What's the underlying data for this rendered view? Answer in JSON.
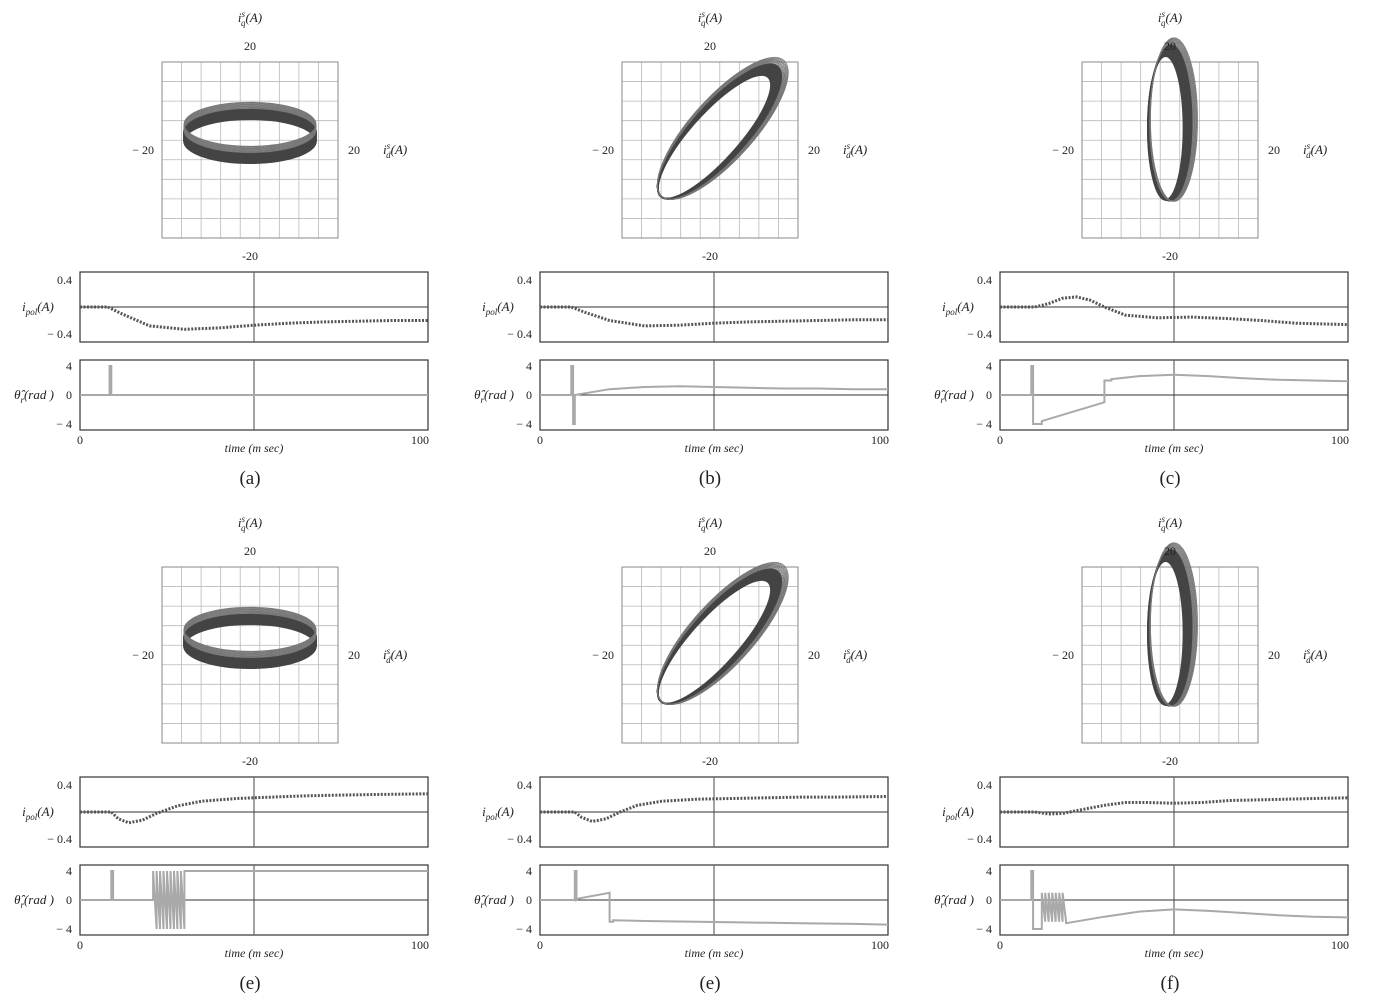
{
  "figure": {
    "captions": [
      "(a)",
      "(b)",
      "(c)",
      "(e)",
      "(e)",
      "(f)"
    ]
  },
  "labels": {
    "phase_y": "i",
    "phase_y_sup": "s",
    "phase_y_sub": "q",
    "phase_x": "i",
    "phase_x_sup": "s",
    "phase_x_sub": "d",
    "unit_A": "(A)",
    "ipol": "i",
    "ipol_sub": "pol",
    "theta": "θ̂",
    "theta_sub": "r",
    "theta_unit": "(rad )",
    "time_label": "time (m sec)"
  },
  "chart_data": [
    {
      "type": "line",
      "caption": "(a)",
      "phase": {
        "xlabel": "i_d^s(A)",
        "ylabel": "i_q^s(A)",
        "xlim": [
          -20,
          20
        ],
        "ylim": [
          -20,
          20
        ],
        "ticks": [
          -20,
          20
        ],
        "orbit": {
          "shape": "horizontal-ellipse",
          "center": [
            0,
            4
          ],
          "semi_axis_major": 15,
          "semi_axis_minor": 5,
          "tilt_deg": 0
        }
      },
      "ipol": {
        "ylabel": "i_pol(A)",
        "xlim": [
          0,
          100
        ],
        "ylim": [
          -0.4,
          0.4
        ],
        "yticks": [
          0.4,
          -0.4
        ],
        "x": [
          0,
          8,
          12,
          20,
          30,
          40,
          50,
          60,
          70,
          80,
          90,
          100
        ],
        "y": [
          0,
          0,
          -0.1,
          -0.28,
          -0.33,
          -0.31,
          -0.27,
          -0.24,
          -0.22,
          -0.21,
          -0.2,
          -0.2
        ]
      },
      "theta": {
        "ylabel": "θ̂_r(rad)",
        "xlabel": "time (m sec)",
        "xlim": [
          0,
          100
        ],
        "ylim": [
          -4,
          4
        ],
        "yticks": [
          4,
          0,
          -4
        ],
        "xticks": [
          0,
          100
        ],
        "x": [
          0,
          8.5,
          8.5,
          9,
          9,
          100
        ],
        "y": [
          0,
          0,
          4,
          4,
          0,
          0
        ]
      }
    },
    {
      "type": "line",
      "caption": "(b)",
      "phase": {
        "xlabel": "i_d^s(A)",
        "ylabel": "i_q^s(A)",
        "xlim": [
          -20,
          20
        ],
        "ylim": [
          -20,
          20
        ],
        "ticks": [
          -20,
          20
        ],
        "orbit": {
          "shape": "tilted-ellipse",
          "center": [
            2,
            3
          ],
          "semi_axis_major": 19,
          "semi_axis_minor": 6,
          "tilt_deg": 48
        }
      },
      "ipol": {
        "ylabel": "i_pol(A)",
        "xlim": [
          0,
          100
        ],
        "ylim": [
          -0.4,
          0.4
        ],
        "yticks": [
          0.4,
          -0.4
        ],
        "x": [
          0,
          9,
          13,
          20,
          30,
          40,
          50,
          60,
          70,
          80,
          90,
          100
        ],
        "y": [
          0,
          0,
          -0.08,
          -0.2,
          -0.28,
          -0.27,
          -0.24,
          -0.22,
          -0.21,
          -0.2,
          -0.19,
          -0.19
        ]
      },
      "theta": {
        "ylabel": "θ̂_r(rad)",
        "xlabel": "time (m sec)",
        "xlim": [
          0,
          100
        ],
        "ylim": [
          -4,
          4
        ],
        "yticks": [
          4,
          0,
          -4
        ],
        "xticks": [
          0,
          100
        ],
        "x": [
          0,
          9,
          9,
          9.5,
          9.5,
          10,
          10,
          20,
          30,
          40,
          50,
          60,
          70,
          80,
          90,
          100
        ],
        "y": [
          0,
          0,
          4,
          4,
          -4,
          -4,
          0,
          0.8,
          1.1,
          1.2,
          1.1,
          1.0,
          0.9,
          0.9,
          0.8,
          0.8
        ]
      }
    },
    {
      "type": "line",
      "caption": "(c)",
      "phase": {
        "xlabel": "i_d^s(A)",
        "ylabel": "i_q^s(A)",
        "xlim": [
          -20,
          20
        ],
        "ylim": [
          -20,
          20
        ],
        "ticks": [
          -20,
          20
        ],
        "orbit": {
          "shape": "vertical-ellipse",
          "center": [
            0,
            5
          ],
          "semi_axis_major": 17,
          "semi_axis_minor": 4.5,
          "tilt_deg": 90
        }
      },
      "ipol": {
        "ylabel": "i_pol(A)",
        "xlim": [
          0,
          100
        ],
        "ylim": [
          -0.4,
          0.4
        ],
        "yticks": [
          0.4,
          -0.4
        ],
        "x": [
          0,
          10,
          14,
          18,
          22,
          26,
          30,
          36,
          45,
          55,
          65,
          75,
          85,
          100
        ],
        "y": [
          0,
          0,
          0.05,
          0.13,
          0.15,
          0.1,
          0.0,
          -0.12,
          -0.16,
          -0.15,
          -0.17,
          -0.2,
          -0.24,
          -0.26
        ]
      },
      "theta": {
        "ylabel": "θ̂_r(rad)",
        "xlabel": "time (m sec)",
        "xlim": [
          0,
          100
        ],
        "ylim": [
          -4,
          4
        ],
        "yticks": [
          4,
          0,
          -4
        ],
        "xticks": [
          0,
          100
        ],
        "x": [
          0,
          9,
          9,
          9.5,
          9.5,
          12,
          12,
          30,
          30,
          32,
          32,
          40,
          50,
          60,
          70,
          80,
          90,
          100
        ],
        "y": [
          0,
          0,
          4,
          4,
          -4,
          -4,
          -3.6,
          -1.0,
          2.0,
          2.0,
          2.2,
          2.6,
          2.8,
          2.6,
          2.3,
          2.1,
          2.0,
          1.9
        ]
      }
    },
    {
      "type": "line",
      "caption": "(e)",
      "phase": {
        "xlabel": "i_d^s(A)",
        "ylabel": "i_q^s(A)",
        "xlim": [
          -20,
          20
        ],
        "ylim": [
          -20,
          20
        ],
        "ticks": [
          -20,
          20
        ],
        "orbit": {
          "shape": "horizontal-ellipse",
          "center": [
            0,
            4
          ],
          "semi_axis_major": 15,
          "semi_axis_minor": 5,
          "tilt_deg": 0
        }
      },
      "ipol": {
        "ylabel": "i_pol(A)",
        "xlim": [
          0,
          100
        ],
        "ylim": [
          -0.4,
          0.4
        ],
        "yticks": [
          0.4,
          -0.4
        ],
        "x": [
          0,
          9,
          11,
          14,
          18,
          22,
          28,
          35,
          45,
          55,
          65,
          75,
          85,
          100
        ],
        "y": [
          0,
          0,
          -0.1,
          -0.16,
          -0.12,
          -0.02,
          0.09,
          0.16,
          0.2,
          0.22,
          0.24,
          0.25,
          0.26,
          0.27
        ]
      },
      "theta": {
        "ylabel": "θ̂_r(rad)",
        "xlabel": "time (m sec)",
        "xlim": [
          0,
          100
        ],
        "ylim": [
          -4,
          4
        ],
        "yticks": [
          4,
          0,
          -4
        ],
        "xticks": [
          0,
          100
        ],
        "x": [
          0,
          9,
          9,
          9.5,
          9.5,
          21,
          21,
          22,
          22,
          23,
          23,
          24,
          24,
          25,
          25,
          26,
          26,
          27,
          27,
          28,
          28,
          29,
          29,
          30,
          30,
          100
        ],
        "y": [
          0,
          0,
          4,
          4,
          0,
          0,
          4,
          -4,
          4,
          -4,
          4,
          -4,
          4,
          -4,
          4,
          -4,
          4,
          -4,
          4,
          -4,
          4,
          -4,
          4,
          -4,
          4,
          4
        ]
      }
    },
    {
      "type": "line",
      "caption": "(e)",
      "phase": {
        "xlabel": "i_d^s(A)",
        "ylabel": "i_q^s(A)",
        "xlim": [
          -20,
          20
        ],
        "ylim": [
          -20,
          20
        ],
        "ticks": [
          -20,
          20
        ],
        "orbit": {
          "shape": "tilted-ellipse",
          "center": [
            2,
            3
          ],
          "semi_axis_major": 19,
          "semi_axis_minor": 6,
          "tilt_deg": 48
        }
      },
      "ipol": {
        "ylabel": "i_pol(A)",
        "xlim": [
          0,
          100
        ],
        "ylim": [
          -0.4,
          0.4
        ],
        "yticks": [
          0.4,
          -0.4
        ],
        "x": [
          0,
          10,
          12,
          15,
          19,
          23,
          28,
          35,
          45,
          55,
          65,
          75,
          85,
          100
        ],
        "y": [
          0,
          0,
          -0.08,
          -0.14,
          -0.1,
          0.0,
          0.1,
          0.16,
          0.19,
          0.2,
          0.21,
          0.22,
          0.22,
          0.23
        ]
      },
      "theta": {
        "ylabel": "θ̂_r(rad)",
        "xlabel": "time (m sec)",
        "xlim": [
          0,
          100
        ],
        "ylim": [
          -4,
          4
        ],
        "yticks": [
          4,
          0,
          -4
        ],
        "xticks": [
          0,
          100
        ],
        "x": [
          0,
          10,
          10,
          10.5,
          10.5,
          11,
          20,
          20,
          21,
          21,
          30,
          45,
          60,
          75,
          90,
          100
        ],
        "y": [
          0,
          0,
          4,
          4,
          0,
          0.2,
          1.0,
          -3.0,
          -3.0,
          -2.8,
          -2.9,
          -3.0,
          -3.1,
          -3.2,
          -3.3,
          -3.4
        ]
      }
    },
    {
      "type": "line",
      "caption": "(f)",
      "phase": {
        "xlabel": "i_d^s(A)",
        "ylabel": "i_q^s(A)",
        "xlim": [
          -20,
          20
        ],
        "ylim": [
          -20,
          20
        ],
        "ticks": [
          -20,
          20
        ],
        "orbit": {
          "shape": "vertical-ellipse",
          "center": [
            0,
            5
          ],
          "semi_axis_major": 17,
          "semi_axis_minor": 4.5,
          "tilt_deg": 90
        }
      },
      "ipol": {
        "ylabel": "i_pol(A)",
        "xlim": [
          0,
          100
        ],
        "ylim": [
          -0.4,
          0.4
        ],
        "yticks": [
          0.4,
          -0.4
        ],
        "x": [
          0,
          10,
          14,
          18,
          24,
          30,
          36,
          42,
          50,
          58,
          66,
          74,
          82,
          90,
          100
        ],
        "y": [
          0,
          0,
          -0.03,
          -0.02,
          0.04,
          0.1,
          0.14,
          0.14,
          0.13,
          0.14,
          0.17,
          0.18,
          0.19,
          0.2,
          0.21
        ]
      },
      "theta": {
        "ylabel": "θ̂_r(rad)",
        "xlabel": "time (m sec)",
        "xlim": [
          0,
          100
        ],
        "ylim": [
          -4,
          4
        ],
        "yticks": [
          4,
          0,
          -4
        ],
        "xticks": [
          0,
          100
        ],
        "x": [
          0,
          9,
          9,
          9.5,
          9.5,
          12,
          12,
          13,
          13,
          14,
          14,
          15,
          15,
          16,
          16,
          17,
          17,
          18,
          18,
          19,
          19,
          30,
          40,
          50,
          60,
          70,
          80,
          90,
          100
        ],
        "y": [
          0,
          0,
          4,
          4,
          -4,
          -4,
          1,
          -3,
          1,
          -3,
          1,
          -3,
          1,
          -3,
          1,
          -3,
          1,
          -3,
          1,
          -3,
          -3.2,
          -2.3,
          -1.6,
          -1.3,
          -1.5,
          -1.8,
          -2.1,
          -2.3,
          -2.4
        ]
      }
    }
  ]
}
